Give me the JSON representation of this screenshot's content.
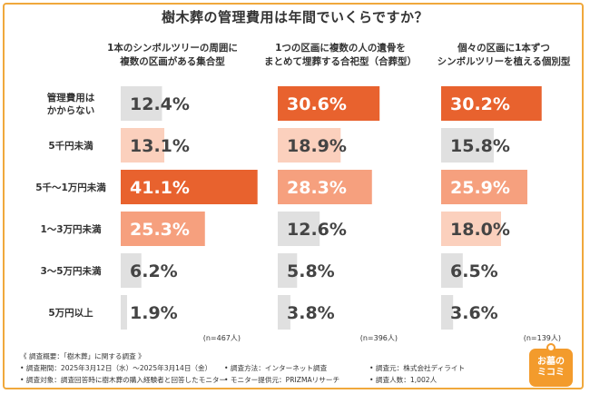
{
  "title": "樹木葬の管理費用は年間でいくらですか？",
  "colors": {
    "orange": "#e8622e",
    "light_orange": "#f6a07e",
    "pale_orange": "#fbd0bd",
    "gray": "#e0e0e0",
    "frame": "#f0a83c"
  },
  "chart_data": {
    "type": "bar",
    "orientation": "horizontal",
    "title": "樹木葬の管理費用は年間でいくらですか？",
    "categories": [
      "管理費用は\nかからない",
      "5千円未満",
      "5千〜1万円未満",
      "1〜3万円未満",
      "3〜5万円未満",
      "5万円以上"
    ],
    "series": [
      {
        "name": "1本のシンボルツリーの周囲に\n複数の区画がある集合型",
        "values": [
          12.4,
          13.1,
          41.1,
          25.3,
          6.2,
          1.9
        ],
        "labels": [
          "12.4%",
          "13.1%",
          "41.1%",
          "25.3%",
          "6.2%",
          "1.9%"
        ],
        "n": "(n=467人)",
        "tones": [
          "gray",
          "pale",
          "orange",
          "light",
          "gray",
          "gray"
        ]
      },
      {
        "name": "1つの区画に複数の人の遺骨を\nまとめて埋葬する合祀型（合葬型）",
        "values": [
          30.6,
          18.9,
          28.3,
          12.6,
          5.8,
          3.8
        ],
        "labels": [
          "30.6%",
          "18.9%",
          "28.3%",
          "12.6%",
          "5.8%",
          "3.8%"
        ],
        "n": "(n=396人)",
        "tones": [
          "orange",
          "pale",
          "light",
          "gray",
          "gray",
          "gray"
        ]
      },
      {
        "name": "個々の区画に1本ずつ\nシンボルツリーを植える個別型",
        "values": [
          30.2,
          15.8,
          25.9,
          18.0,
          6.5,
          3.6
        ],
        "labels": [
          "30.2%",
          "15.8%",
          "25.9%",
          "18.0%",
          "6.5%",
          "3.6%"
        ],
        "n": "(n=139人)",
        "tones": [
          "orange",
          "gray",
          "light",
          "pale",
          "gray",
          "gray"
        ]
      }
    ],
    "xlim": [
      0,
      45
    ],
    "grid": false,
    "legend": "none"
  },
  "footer": {
    "heading": "《 調査概要：「樹木葬」に関する調査 》",
    "row1": [
      "• 調査期間：2025年3月12日（水）〜2025年3月14日（金）",
      "• 調査方法：インターネット調査",
      "• 調査元：株式会社ディライト"
    ],
    "row2": [
      "• 調査対象：調査回答時に樹木葬の購入経験者と回答したモニター",
      "• モニター提供元：PRIZMAリサーチ",
      "• 調査人数：1,002人"
    ]
  },
  "logo": {
    "line1": "お墓の",
    "line2": "ミコミ"
  }
}
